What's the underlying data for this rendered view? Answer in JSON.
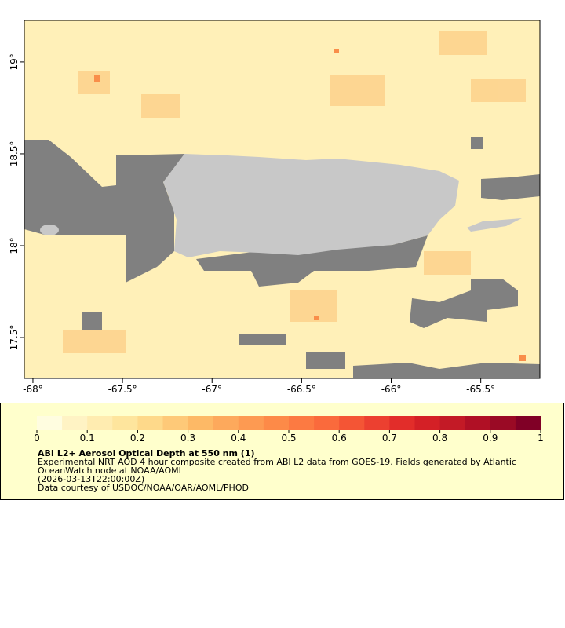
{
  "map": {
    "xlim": [
      -68.048,
      -65.17
    ],
    "ylim": [
      17.278,
      19.226
    ],
    "xticks": [
      {
        "value": -68,
        "label": "-68°"
      },
      {
        "value": -67.5,
        "label": "-67.5°"
      },
      {
        "value": -67,
        "label": "-67°"
      },
      {
        "value": -66.5,
        "label": "-66.5°"
      },
      {
        "value": -66,
        "label": "-66°"
      },
      {
        "value": -65.5,
        "label": "-65.5°"
      }
    ],
    "yticks": [
      {
        "value": 17.5,
        "label": "17.5°"
      },
      {
        "value": 18,
        "label": "18°"
      },
      {
        "value": 18.5,
        "label": "18.5°"
      },
      {
        "value": 19,
        "label": "19°"
      }
    ]
  },
  "colorbar": {
    "range": [
      0,
      1
    ],
    "ticks": [
      0,
      0.1,
      0.2,
      0.3,
      0.4,
      0.5,
      0.6,
      0.7,
      0.8,
      0.9,
      1
    ],
    "colors": [
      "#fffde0",
      "#fff3c4",
      "#ffecb0",
      "#fee59d",
      "#fed98a",
      "#fec978",
      "#fdb966",
      "#fda95c",
      "#fd9a52",
      "#fd8a48",
      "#fc7a42",
      "#fa6a3c",
      "#f45535",
      "#ec4030",
      "#e22d2a",
      "#d42026",
      "#c31a26",
      "#b01025",
      "#9a0a25",
      "#800026"
    ]
  },
  "caption": {
    "title": "ABI L2+ Aerosol Optical Depth at 550 nm (1)",
    "lines": [
      "Experimental NRT AOD 4 hour composite created from ABI L2 data from GOES-19. Fields generated by Atlantic",
      "OceanWatch node at NOAA/AOML",
      "(2026-03-13T22:00:00Z)",
      "Data courtesy of USDOC/NOAA/OAR/AOML/PHOD"
    ]
  }
}
